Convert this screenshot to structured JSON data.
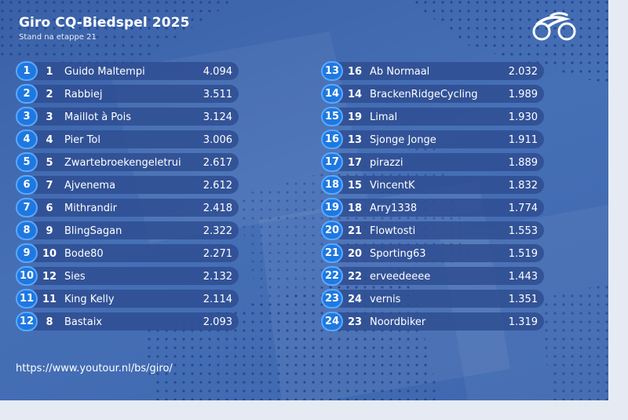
{
  "header": {
    "title": "Giro CQ-Biedspel 2025",
    "subtitle": "Stand na etappe 21"
  },
  "logo": {
    "icon": "cycling-logo-icon"
  },
  "standings": [
    {
      "rank": "1",
      "prev": "1",
      "name": "Guido Maltempi",
      "score": "4.094"
    },
    {
      "rank": "2",
      "prev": "2",
      "name": "Rabbiej",
      "score": "3.511"
    },
    {
      "rank": "3",
      "prev": "3",
      "name": "Maillot à Pois",
      "score": "3.124"
    },
    {
      "rank": "4",
      "prev": "4",
      "name": "Pier Tol",
      "score": "3.006"
    },
    {
      "rank": "5",
      "prev": "5",
      "name": "Zwartebroekengeletrui",
      "score": "2.617"
    },
    {
      "rank": "6",
      "prev": "7",
      "name": "Ajvenema",
      "score": "2.612"
    },
    {
      "rank": "7",
      "prev": "6",
      "name": "Mithrandir",
      "score": "2.418"
    },
    {
      "rank": "8",
      "prev": "9",
      "name": "BlingSagan",
      "score": "2.322"
    },
    {
      "rank": "9",
      "prev": "10",
      "name": "Bode80",
      "score": "2.271"
    },
    {
      "rank": "10",
      "prev": "12",
      "name": "Sies",
      "score": "2.132"
    },
    {
      "rank": "11",
      "prev": "11",
      "name": "King Kelly",
      "score": "2.114"
    },
    {
      "rank": "12",
      "prev": "8",
      "name": "Bastaix",
      "score": "2.093"
    },
    {
      "rank": "13",
      "prev": "16",
      "name": "Ab Normaal",
      "score": "2.032"
    },
    {
      "rank": "14",
      "prev": "14",
      "name": "BrackenRidgeCycling",
      "score": "1.989"
    },
    {
      "rank": "15",
      "prev": "19",
      "name": "Limal",
      "score": "1.930"
    },
    {
      "rank": "16",
      "prev": "13",
      "name": "Sjonge Jonge",
      "score": "1.911"
    },
    {
      "rank": "17",
      "prev": "17",
      "name": "pirazzi",
      "score": "1.889"
    },
    {
      "rank": "18",
      "prev": "15",
      "name": "VincentK",
      "score": "1.832"
    },
    {
      "rank": "19",
      "prev": "18",
      "name": "Arry1338",
      "score": "1.774"
    },
    {
      "rank": "20",
      "prev": "21",
      "name": "Flowtosti",
      "score": "1.553"
    },
    {
      "rank": "21",
      "prev": "20",
      "name": "Sporting63",
      "score": "1.519"
    },
    {
      "rank": "22",
      "prev": "22",
      "name": "erveedeeee",
      "score": "1.443"
    },
    {
      "rank": "23",
      "prev": "24",
      "name": "vernis",
      "score": "1.351"
    },
    {
      "rank": "24",
      "prev": "23",
      "name": "Noordbiker",
      "score": "1.319"
    }
  ],
  "footer": {
    "url": "https://www.youtour.nl/bs/giro/"
  },
  "colors": {
    "background": "#3f67ad",
    "row_bar": "#2f4e92",
    "rank_badge": "#1f78e0",
    "rank_badge_border": "#5aa8ff",
    "text": "#ffffff"
  }
}
